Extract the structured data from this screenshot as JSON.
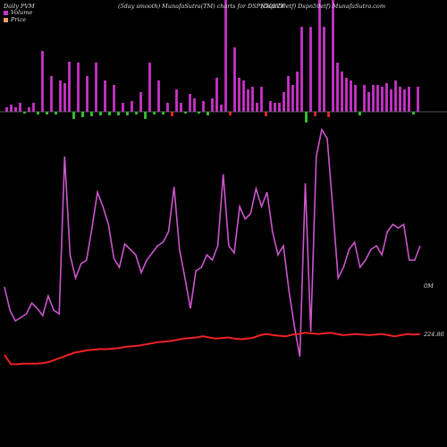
{
  "header": {
    "left": "Daily PVM",
    "center": "(5day smooth) MunafaSutra(TM) charts for DSPN50ETF",
    "right": "(Dspn50etf) Dspn50etf) MunafaSutra.com"
  },
  "legend": [
    {
      "label": "Volume",
      "color": "#cc33cc"
    },
    {
      "label": "Price",
      "color": "#f0a060"
    }
  ],
  "colors": {
    "background": "#000000",
    "volume_up": "#cc33cc",
    "volume_down": "#33cc33",
    "volume_red": "#ee2222",
    "volume_line": "#cc55cc",
    "price_line": "#ee2222",
    "baseline": "#888888"
  },
  "chart_data": {
    "type": "bar",
    "title": "(5day smooth) MunafaSutra(TM) charts for DSPN50ETF",
    "volume_bars": [
      {
        "dir": "up",
        "v": 5
      },
      {
        "dir": "up",
        "v": 8
      },
      {
        "dir": "up",
        "v": 5
      },
      {
        "dir": "up",
        "v": 10
      },
      {
        "dir": "down",
        "v": 2
      },
      {
        "dir": "up",
        "v": 5
      },
      {
        "dir": "up",
        "v": 10
      },
      {
        "dir": "down",
        "v": 3
      },
      {
        "dir": "up",
        "v": 68
      },
      {
        "dir": "down",
        "v": 3
      },
      {
        "dir": "up",
        "v": 40
      },
      {
        "dir": "down",
        "v": 3
      },
      {
        "dir": "up",
        "v": 35
      },
      {
        "dir": "up",
        "v": 32
      },
      {
        "dir": "up",
        "v": 56
      },
      {
        "dir": "down",
        "v": 8
      },
      {
        "dir": "up",
        "v": 55
      },
      {
        "dir": "down",
        "v": 6
      },
      {
        "dir": "up",
        "v": 40
      },
      {
        "dir": "down",
        "v": 5
      },
      {
        "dir": "up",
        "v": 55
      },
      {
        "dir": "down",
        "v": 4
      },
      {
        "dir": "up",
        "v": 35
      },
      {
        "dir": "down",
        "v": 4
      },
      {
        "dir": "up",
        "v": 30
      },
      {
        "dir": "down",
        "v": 4
      },
      {
        "dir": "up",
        "v": 10
      },
      {
        "dir": "down",
        "v": 4
      },
      {
        "dir": "up",
        "v": 12
      },
      {
        "dir": "down",
        "v": 3
      },
      {
        "dir": "up",
        "v": 22
      },
      {
        "dir": "down",
        "v": 8
      },
      {
        "dir": "up",
        "v": 55
      },
      {
        "dir": "down",
        "v": 3
      },
      {
        "dir": "up",
        "v": 35
      },
      {
        "dir": "down",
        "v": 3
      },
      {
        "dir": "up",
        "v": 10
      },
      {
        "dir": "red",
        "v": 5
      },
      {
        "dir": "up",
        "v": 25
      },
      {
        "dir": "up",
        "v": 10
      },
      {
        "dir": "down",
        "v": 2
      },
      {
        "dir": "up",
        "v": 20
      },
      {
        "dir": "up",
        "v": 15
      },
      {
        "dir": "down",
        "v": 2
      },
      {
        "dir": "up",
        "v": 12
      },
      {
        "dir": "down",
        "v": 4
      },
      {
        "dir": "up",
        "v": 15
      },
      {
        "dir": "up",
        "v": 38
      },
      {
        "dir": "up",
        "v": 8
      },
      {
        "dir": "up",
        "v": 125
      },
      {
        "dir": "red",
        "v": 4
      },
      {
        "dir": "up",
        "v": 72
      },
      {
        "dir": "up",
        "v": 38
      },
      {
        "dir": "up",
        "v": 35
      },
      {
        "dir": "up",
        "v": 25
      },
      {
        "dir": "up",
        "v": 28
      },
      {
        "dir": "up",
        "v": 10
      },
      {
        "dir": "up",
        "v": 28
      },
      {
        "dir": "red",
        "v": 5
      },
      {
        "dir": "up",
        "v": 12
      },
      {
        "dir": "up",
        "v": 10
      },
      {
        "dir": "up",
        "v": 10
      },
      {
        "dir": "up",
        "v": 22
      },
      {
        "dir": "up",
        "v": 40
      },
      {
        "dir": "up",
        "v": 30
      },
      {
        "dir": "up",
        "v": 45
      },
      {
        "dir": "up",
        "v": 95
      },
      {
        "dir": "down",
        "v": 12
      },
      {
        "dir": "up",
        "v": 95
      },
      {
        "dir": "red",
        "v": 5
      },
      {
        "dir": "up",
        "v": 150
      },
      {
        "dir": "up",
        "v": 95
      },
      {
        "dir": "red",
        "v": 6
      },
      {
        "dir": "up",
        "v": 150
      },
      {
        "dir": "up",
        "v": 55
      },
      {
        "dir": "up",
        "v": 45
      },
      {
        "dir": "up",
        "v": 38
      },
      {
        "dir": "up",
        "v": 35
      },
      {
        "dir": "up",
        "v": 30
      },
      {
        "dir": "down",
        "v": 4
      },
      {
        "dir": "up",
        "v": 30
      },
      {
        "dir": "up",
        "v": 22
      },
      {
        "dir": "up",
        "v": 30
      },
      {
        "dir": "up",
        "v": 30
      },
      {
        "dir": "up",
        "v": 28
      },
      {
        "dir": "up",
        "v": 32
      },
      {
        "dir": "up",
        "v": 25
      },
      {
        "dir": "up",
        "v": 35
      },
      {
        "dir": "up",
        "v": 28
      },
      {
        "dir": "up",
        "v": 25
      },
      {
        "dir": "up",
        "v": 28
      },
      {
        "dir": "down",
        "v": 3
      },
      {
        "dir": "up",
        "v": 28
      }
    ],
    "volume_line": [
      93,
      106,
      112,
      110,
      108,
      102,
      105,
      109,
      98,
      106,
      108,
      20,
      75,
      88,
      80,
      78,
      60,
      40,
      48,
      58,
      77,
      82,
      69,
      72,
      75,
      85,
      78,
      74,
      70,
      68,
      62,
      37,
      72,
      88,
      105,
      84,
      82,
      75,
      78,
      70,
      30,
      70,
      74,
      48,
      55,
      52,
      38,
      48,
      40,
      62,
      75,
      70,
      95,
      115,
      132,
      35,
      118,
      20,
      5,
      10,
      48,
      88,
      82,
      72,
      68,
      82,
      78,
      72,
      70,
      75,
      62,
      58,
      60,
      58,
      78,
      78,
      70
    ],
    "price_line": [
      10,
      2,
      2,
      2.5,
      2.5,
      2.5,
      3,
      4,
      6,
      8,
      10,
      12,
      13,
      14,
      14.5,
      15,
      15,
      15.5,
      16,
      17,
      17.5,
      18,
      19,
      20,
      21,
      21.5,
      22,
      23,
      24,
      24.5,
      25,
      26,
      25,
      24,
      24.5,
      25,
      24,
      23.5,
      24,
      25,
      27,
      28,
      27,
      26.5,
      26,
      27.5,
      28,
      29,
      28.5,
      28,
      28.5,
      29,
      28,
      27,
      27.5,
      28,
      27.5,
      27,
      27.5,
      28,
      27,
      26,
      27,
      28,
      27.5,
      28
    ],
    "annotations": {
      "volume_label": "0M",
      "price_label": "224.86"
    },
    "legend": [
      "Volume",
      "Price"
    ],
    "grid": false
  }
}
